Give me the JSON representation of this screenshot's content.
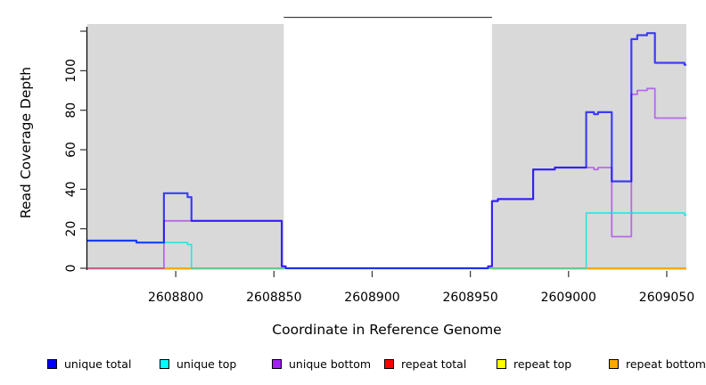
{
  "chart_data": {
    "type": "line",
    "subtype": "step-after-coverage",
    "title": "",
    "xlabel": "Coordinate in Reference Genome",
    "ylabel": "Read Coverage Depth",
    "x_domain": [
      2608755,
      2609060
    ],
    "y_domain": [
      0,
      127
    ],
    "grid": false,
    "panel_color": "#d9d9d9",
    "unshaded_gap": [
      2608855,
      2608961
    ],
    "shaded_regions": [
      {
        "x1": 2608755,
        "x2": 2608855
      },
      {
        "x1": 2608961,
        "x2": 2609060
      }
    ],
    "axes": {
      "x": {
        "ticks": [
          {
            "value": 2608800,
            "label": "2608800"
          },
          {
            "value": 2608850,
            "label": "2608850"
          },
          {
            "value": 2608900,
            "label": "2608900"
          },
          {
            "value": 2608950,
            "label": "2608950"
          },
          {
            "value": 2609000,
            "label": "2609000"
          },
          {
            "value": 2609050,
            "label": "2609050"
          }
        ]
      },
      "y": {
        "ticks": [
          {
            "value": 0,
            "label": "0"
          },
          {
            "value": 20,
            "label": "20"
          },
          {
            "value": 40,
            "label": "40"
          },
          {
            "value": 60,
            "label": "60"
          },
          {
            "value": 80,
            "label": "80"
          },
          {
            "value": 100,
            "label": "100"
          },
          {
            "value": 120,
            "label": ""
          }
        ]
      }
    },
    "series": [
      {
        "name": "repeat total",
        "color": "#ff0000",
        "opacity": 1,
        "width": 1.4,
        "values": [
          [
            2608755,
            0
          ]
        ]
      },
      {
        "name": "repeat top",
        "color": "#ffff00",
        "opacity": 1,
        "width": 1.4,
        "values": [
          [
            2608755,
            0
          ]
        ]
      },
      {
        "name": "repeat bottom",
        "color": "#ffa500",
        "opacity": 1,
        "width": 1.8,
        "values": [
          [
            2608755,
            0
          ]
        ]
      },
      {
        "name": "unique bottom",
        "color": "#a020f0",
        "opacity": 0.6,
        "width": 1.8,
        "values": [
          [
            2608755,
            0
          ],
          [
            2608794,
            24
          ],
          [
            2608854,
            1
          ],
          [
            2608856,
            0
          ],
          [
            2608959,
            1
          ],
          [
            2608961,
            34
          ],
          [
            2608964,
            35
          ],
          [
            2608982,
            50
          ],
          [
            2608993,
            51
          ],
          [
            2609013,
            50
          ],
          [
            2609015,
            51
          ],
          [
            2609022,
            16
          ],
          [
            2609032,
            88
          ],
          [
            2609035,
            90
          ],
          [
            2609040,
            91
          ],
          [
            2609044,
            76
          ]
        ]
      },
      {
        "name": "unique top",
        "color": "#00e5e5",
        "opacity": 0.8,
        "width": 1.6,
        "values": [
          [
            2608755,
            14
          ],
          [
            2608780,
            13
          ],
          [
            2608806,
            12
          ],
          [
            2608808,
            0
          ],
          [
            2609009,
            28
          ],
          [
            2609059,
            27
          ]
        ]
      },
      {
        "name": "unique total",
        "color": "#0000ff",
        "opacity": 0.72,
        "width": 2.2,
        "values": [
          [
            2608755,
            14
          ],
          [
            2608780,
            13
          ],
          [
            2608794,
            38
          ],
          [
            2608806,
            36
          ],
          [
            2608808,
            24
          ],
          [
            2608854,
            1
          ],
          [
            2608856,
            0
          ],
          [
            2608959,
            1
          ],
          [
            2608961,
            34
          ],
          [
            2608964,
            35
          ],
          [
            2608982,
            50
          ],
          [
            2608993,
            51
          ],
          [
            2609009,
            79
          ],
          [
            2609013,
            78
          ],
          [
            2609015,
            79
          ],
          [
            2609022,
            44
          ],
          [
            2609032,
            116
          ],
          [
            2609035,
            118
          ],
          [
            2609040,
            119
          ],
          [
            2609044,
            104
          ],
          [
            2609059,
            103
          ]
        ]
      }
    ]
  },
  "legend": {
    "items": [
      {
        "label": "unique total",
        "color": "#0000ff"
      },
      {
        "label": "unique top",
        "color": "#00ffff"
      },
      {
        "label": "unique bottom",
        "color": "#a020f0"
      },
      {
        "label": "repeat total",
        "color": "#ff0000"
      },
      {
        "label": "repeat top",
        "color": "#ffff00"
      },
      {
        "label": "repeat bottom",
        "color": "#ffa500"
      }
    ]
  }
}
